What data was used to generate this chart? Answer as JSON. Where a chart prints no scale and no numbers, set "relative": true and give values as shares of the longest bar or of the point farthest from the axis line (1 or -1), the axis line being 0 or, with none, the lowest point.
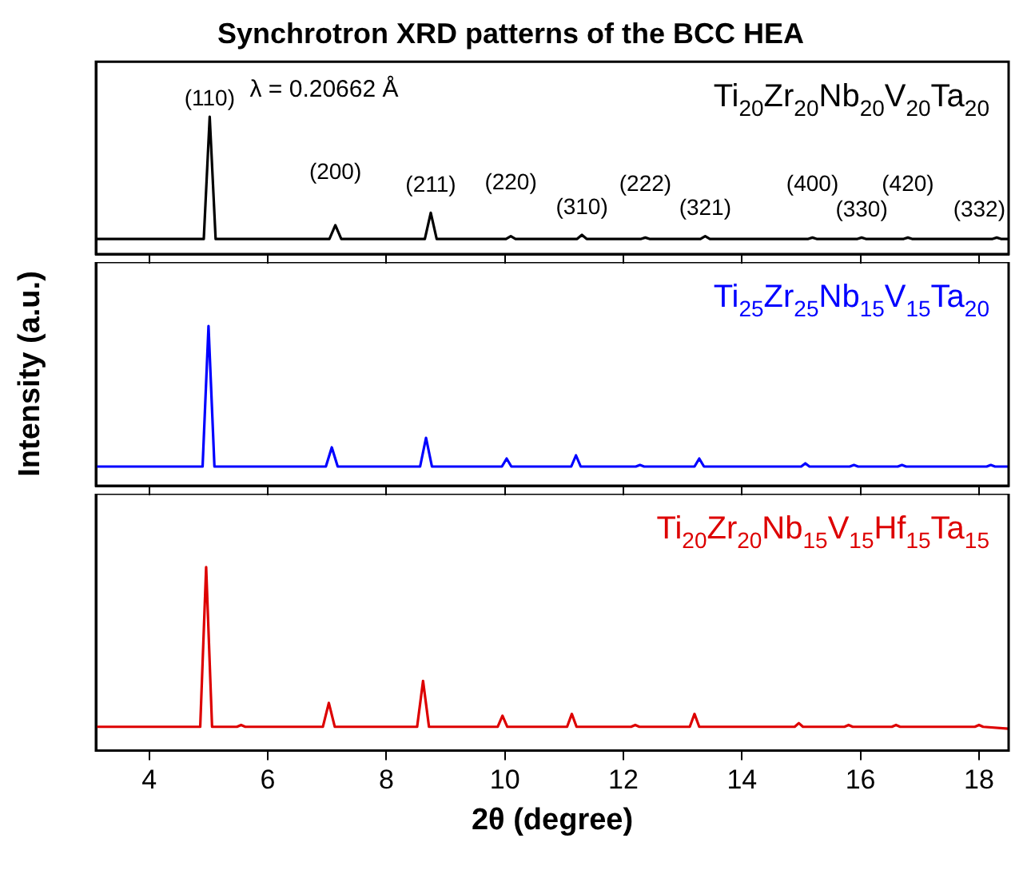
{
  "chart_data": [
    {
      "type": "line",
      "title": "Synchrotron XRD patterns of the BCC HEA",
      "relative": true,
      "xlim": [
        3.1,
        18.5
      ],
      "xticks": [
        4,
        6,
        8,
        10,
        12,
        14,
        16,
        18
      ],
      "tick_labels": false,
      "grid": false,
      "legend": false,
      "marker": "none",
      "line_style": "solid",
      "annotations": [
        "λ = 0.20662 Å",
        {
          "text": "(110)",
          "x": 5.02,
          "y": 1
        },
        {
          "text": "(200)",
          "x": 7.14,
          "y": 0.21
        },
        {
          "text": "(211)",
          "x": 8.75,
          "y": 0.3
        },
        {
          "text": "(220)",
          "x": 10.1,
          "y": 0.13
        },
        {
          "text": "(310)",
          "x": 11.3,
          "y": 0.14
        },
        {
          "text": "(222)",
          "x": 12.37,
          "y": 0.12
        },
        {
          "text": "(321)",
          "x": 13.38,
          "y": 0.13
        },
        {
          "text": "(400)",
          "x": 15.19,
          "y": 0.12
        },
        {
          "text": "(330)",
          "x": 16.02,
          "y": 0.12
        },
        {
          "text": "(420)",
          "x": 16.8,
          "y": 0.12
        },
        {
          "text": "(332)",
          "x": 18.3,
          "y": 0.12
        }
      ],
      "series": [
        {
          "name": "Ti$_{20}$Zr$_{20}$Nb$_{20}$V$_{20}$Ta$_{20}$",
          "color": "#000000",
          "x": [
            3.1,
            4.92,
            5.02,
            5.12,
            7.04,
            7.14,
            7.24,
            8.65,
            8.75,
            8.85,
            10.02,
            10.1,
            10.18,
            11.22,
            11.3,
            11.38,
            12.3,
            12.37,
            12.44,
            13.3,
            13.38,
            13.46,
            15.12,
            15.19,
            15.26,
            15.95,
            16.02,
            16.09,
            16.73,
            16.8,
            16.87,
            18.23,
            18.3,
            18.37,
            18.5
          ],
          "values": [
            0.11,
            0.11,
            1,
            0.11,
            0.11,
            0.21,
            0.11,
            0.11,
            0.3,
            0.11,
            0.11,
            0.13,
            0.11,
            0.11,
            0.14,
            0.11,
            0.11,
            0.12,
            0.11,
            0.11,
            0.13,
            0.11,
            0.11,
            0.12,
            0.11,
            0.11,
            0.12,
            0.11,
            0.11,
            0.12,
            0.11,
            0.11,
            0.12,
            0.11,
            0.11
          ]
        }
      ]
    },
    {
      "type": "line",
      "ylabel": "Intensity (a.u.)",
      "relative": true,
      "xlim": [
        3.1,
        18.5
      ],
      "xticks": [
        4,
        6,
        8,
        10,
        12,
        14,
        16,
        18
      ],
      "tick_labels": false,
      "grid": false,
      "legend": false,
      "marker": "none",
      "line_style": "solid",
      "series": [
        {
          "name": "Ti$_{25}$Zr$_{25}$Nb$_{15}$V$_{15}$Ta$_{20}$",
          "color": "#0000ff",
          "x": [
            3.1,
            4.9,
            5.0,
            5.1,
            6.98,
            7.08,
            7.18,
            8.57,
            8.67,
            8.77,
            9.95,
            10.03,
            10.11,
            11.12,
            11.2,
            11.28,
            12.21,
            12.28,
            12.35,
            13.2,
            13.28,
            13.36,
            15.0,
            15.07,
            15.14,
            15.82,
            15.89,
            15.96,
            16.63,
            16.7,
            16.77,
            18.13,
            18.2,
            18.27,
            18.5
          ],
          "values": [
            0.12,
            0.12,
            1,
            0.12,
            0.12,
            0.24,
            0.12,
            0.12,
            0.3,
            0.12,
            0.12,
            0.17,
            0.12,
            0.12,
            0.19,
            0.12,
            0.12,
            0.13,
            0.12,
            0.12,
            0.17,
            0.12,
            0.12,
            0.14,
            0.12,
            0.12,
            0.13,
            0.12,
            0.12,
            0.13,
            0.12,
            0.12,
            0.13,
            0.12,
            0.12
          ]
        }
      ]
    },
    {
      "type": "line",
      "xlabel": "2θ (degree)",
      "relative": true,
      "xlim": [
        3.1,
        18.5
      ],
      "xticks": [
        4,
        6,
        8,
        10,
        12,
        14,
        16,
        18
      ],
      "tick_labels": "x",
      "grid": false,
      "legend": false,
      "marker": "none",
      "line_style": "solid",
      "series": [
        {
          "name": "Ti$_{20}$Zr$_{20}$Nb$_{15}$V$_{15}$Hf$_{15}$Ta$_{15}$",
          "color": "#dd0000",
          "x": [
            3.1,
            4.86,
            4.96,
            5.06,
            5.48,
            5.55,
            5.62,
            6.93,
            7.03,
            7.13,
            8.52,
            8.62,
            8.72,
            9.88,
            9.96,
            10.04,
            11.05,
            11.13,
            11.21,
            12.13,
            12.2,
            12.27,
            13.12,
            13.2,
            13.28,
            14.89,
            14.96,
            15.03,
            15.73,
            15.8,
            15.87,
            16.53,
            16.6,
            16.67,
            17.93,
            18.0,
            18.07,
            18.5
          ],
          "values": [
            0.13,
            0.13,
            1,
            0.13,
            0.13,
            0.14,
            0.13,
            0.13,
            0.26,
            0.13,
            0.13,
            0.38,
            0.13,
            0.13,
            0.19,
            0.13,
            0.13,
            0.2,
            0.13,
            0.13,
            0.14,
            0.13,
            0.13,
            0.2,
            0.13,
            0.13,
            0.15,
            0.13,
            0.13,
            0.14,
            0.13,
            0.13,
            0.14,
            0.13,
            0.13,
            0.14,
            0.13,
            0.12
          ]
        }
      ]
    }
  ]
}
